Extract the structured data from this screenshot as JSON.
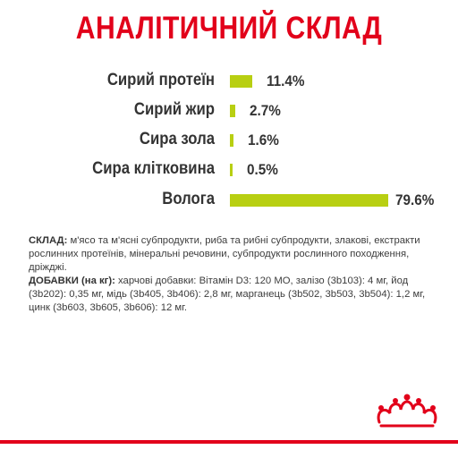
{
  "colors": {
    "accent": "#e2001a",
    "bar": "#b8cf12",
    "text": "#333333"
  },
  "chart_data": {
    "type": "bar",
    "orientation": "horizontal",
    "title": "АНАЛІТИЧНИЙ СКЛАД",
    "categories": [
      "Сирий протеїн",
      "Сирий жир",
      "Сира зола",
      "Сира клітковина",
      "Волога"
    ],
    "values": [
      11.4,
      2.7,
      1.6,
      0.5,
      79.6
    ],
    "value_labels": [
      "11.4%",
      "2.7%",
      "1.6%",
      "0.5%",
      "79.6%"
    ],
    "xlim": [
      0,
      100
    ],
    "grid": false,
    "legend": "none"
  },
  "composition": {
    "label": "СКЛАД:",
    "text": " м'ясо та м'ясні субпродукти, риба та рибні субпродукти, злакові, екстракти рослинних протеїнів, мінеральні речовини, субпродукти рослинного походження, дріжджі."
  },
  "additives": {
    "label": "ДОБАВКИ (на кг):",
    "text": " харчові добавки: Вітамін D3: 120 МО, залізо (3b103): 4 мг, йод (3b202): 0,35 мг, мідь (3b405, 3b406): 2,8 мг, марганець (3b502, 3b503, 3b504): 1,2 мг, цинк (3b603, 3b605, 3b606): 12 мг."
  },
  "logo": {
    "icon": "crown-icon"
  }
}
